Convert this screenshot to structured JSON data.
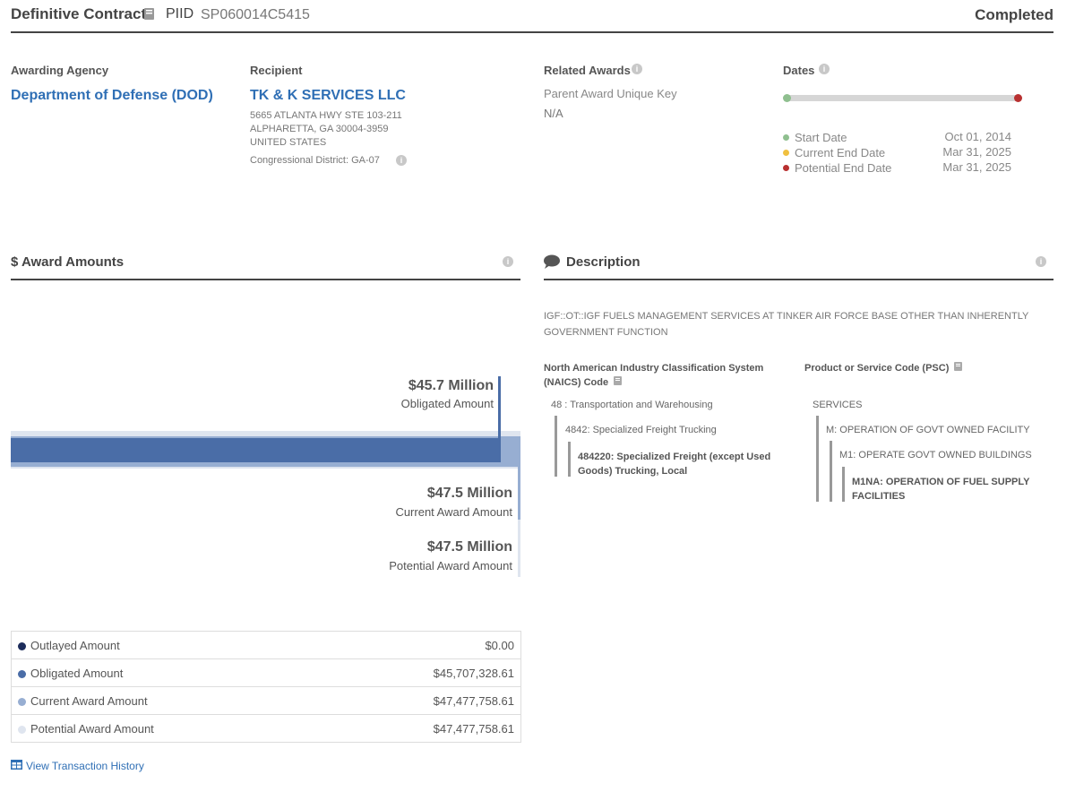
{
  "header": {
    "award_type": "Definitive Contract",
    "piid_label": "PIID",
    "piid": "SP060014C5415",
    "status": "Completed"
  },
  "awarding_agency": {
    "label": "Awarding Agency",
    "name": "Department of Defense (DOD)"
  },
  "recipient": {
    "label": "Recipient",
    "name": "TK & K SERVICES LLC",
    "address_line1": "5665 ATLANTA HWY STE 103-211",
    "address_line2": "ALPHARETTA, GA 30004-3959",
    "country": "UNITED STATES",
    "district": "Congressional District: GA-07"
  },
  "related_awards": {
    "label": "Related Awards",
    "parent_key_label": "Parent Award Unique Key",
    "parent_key_value": "N/A"
  },
  "dates": {
    "label": "Dates",
    "rows": [
      {
        "label": "Start Date",
        "value": "Oct 01, 2014",
        "color": "#8fbf8f"
      },
      {
        "label": "Current End Date",
        "value": "Mar 31, 2025",
        "color": "#f0c040"
      },
      {
        "label": "Potential End Date",
        "value": "Mar 31, 2025",
        "color": "#b83030"
      }
    ]
  },
  "award_amounts": {
    "title": "$ Award Amounts",
    "obligated_big": "$45.7 Million",
    "obligated_sub": "Obligated Amount",
    "current_big": "$47.5 Million",
    "current_sub": "Current Award Amount",
    "potential_big": "$47.5 Million",
    "potential_sub": "Potential Award Amount",
    "obligated_fraction": 0.962,
    "table": [
      {
        "label": "Outlayed Amount",
        "value": "$0.00",
        "color": "#1c2c5b"
      },
      {
        "label": "Obligated Amount",
        "value": "$45,707,328.61",
        "color": "#4a6da7"
      },
      {
        "label": "Current Award Amount",
        "value": "$47,477,758.61",
        "color": "#97aed2"
      },
      {
        "label": "Potential Award Amount",
        "value": "$47,477,758.61",
        "color": "#dfe5ef"
      }
    ],
    "history_link": "View Transaction History"
  },
  "description": {
    "title": "Description",
    "text": "IGF::OT::IGF FUELS MANAGEMENT SERVICES AT TINKER AIR FORCE BASE OTHER THAN INHERENTLY GOVERNMENT FUNCTION",
    "naics": {
      "label_line1": "North American Industry Classification System",
      "label_line2": "(NAICS)  Code",
      "level1": "48 : Transportation and Warehousing",
      "level2": "4842: Specialized Freight Trucking",
      "level3_line1": "484220: Specialized Freight (except Used",
      "level3_line2": "Goods) Trucking, Local"
    },
    "psc": {
      "label": "Product or Service Code  (PSC)",
      "level1": "SERVICES",
      "level2": "M: OPERATION OF GOVT OWNED FACILITY",
      "level3": "M1: OPERATE GOVT OWNED BUILDINGS",
      "level4_line1": "M1NA: OPERATION OF FUEL SUPPLY",
      "level4_line2": "FACILITIES"
    }
  },
  "icons": {
    "glossary": "book-icon",
    "info": "info-icon",
    "comment": "speech-bubble-icon",
    "table": "table-icon"
  }
}
